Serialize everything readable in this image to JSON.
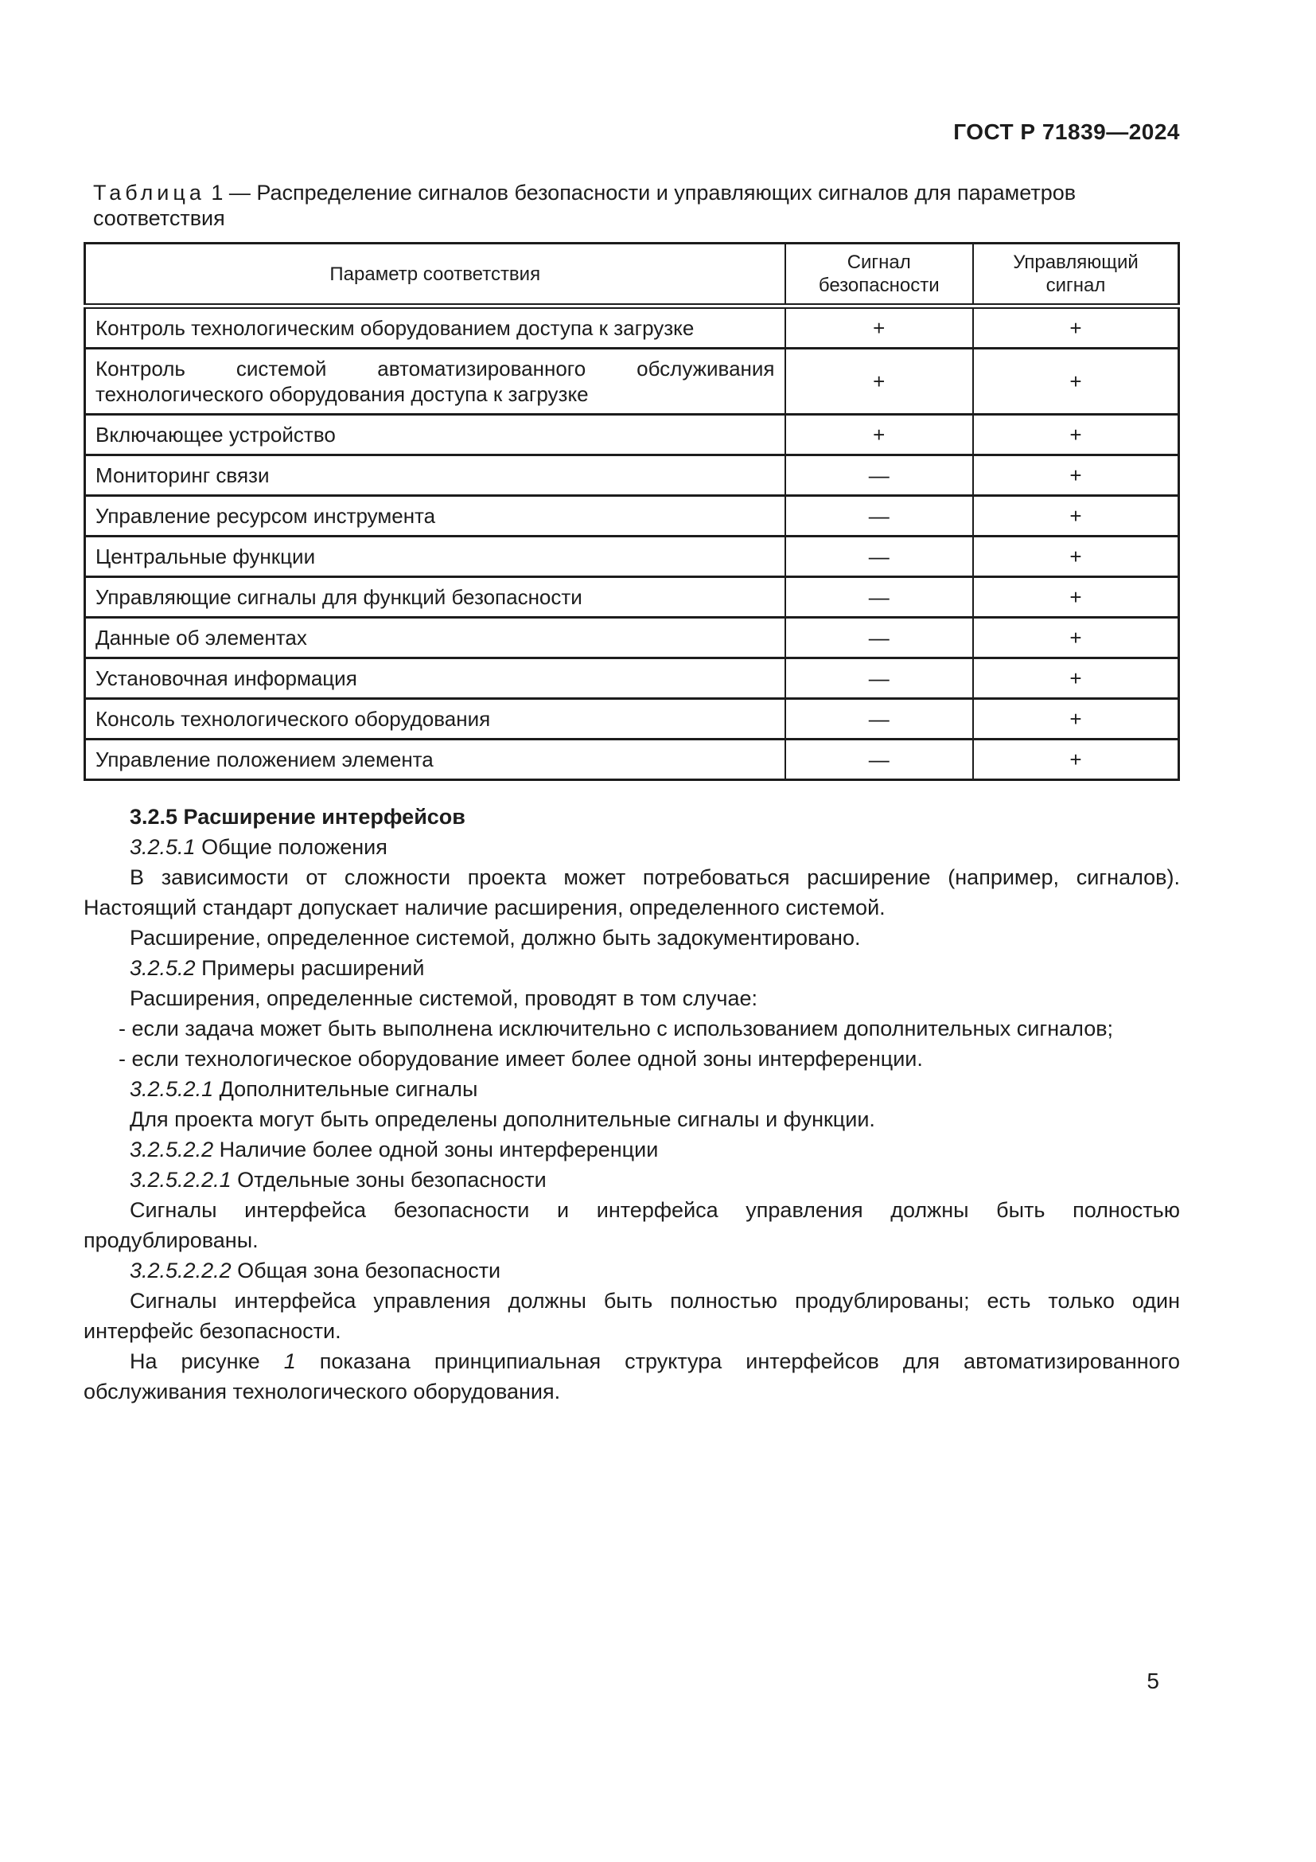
{
  "page": {
    "header": "ГОСТ Р 71839—2024",
    "number": "5"
  },
  "table": {
    "caption_label": "Таблица",
    "caption_rest": " 1 — Распределение сигналов безопасности и управляющих сигналов для параметров соответствия",
    "columns": [
      "Параметр соответствия",
      "Сигнал безопасности",
      "Управляющий сигнал"
    ],
    "rows": [
      {
        "param": "Контроль технологическим оборудованием доступа к загрузке",
        "safety": "+",
        "control": "+"
      },
      {
        "param": "Контроль системой автоматизированного обслуживания технологического оборудования доступа к загрузке",
        "safety": "+",
        "control": "+"
      },
      {
        "param": "Включающее устройство",
        "safety": "+",
        "control": "+"
      },
      {
        "param": "Мониторинг связи",
        "safety": "—",
        "control": "+"
      },
      {
        "param": "Управление ресурсом инструмента",
        "safety": "—",
        "control": "+"
      },
      {
        "param": "Центральные функции",
        "safety": "—",
        "control": "+"
      },
      {
        "param": "Управляющие сигналы для функций безопасности",
        "safety": "—",
        "control": "+"
      },
      {
        "param": "Данные об элементах",
        "safety": "—",
        "control": "+"
      },
      {
        "param": "Установочная информация",
        "safety": "—",
        "control": "+"
      },
      {
        "param": "Консоль технологического оборудования",
        "safety": "—",
        "control": "+"
      },
      {
        "param": "Управление положением элемента",
        "safety": "—",
        "control": "+"
      }
    ]
  },
  "content": {
    "blocks": [
      {
        "type": "clause-heading",
        "text": "3.2.5 Расширение интерфейсов"
      },
      {
        "type": "subclause-heading",
        "num": "3.2.5.1",
        "title": "Общие положения"
      },
      {
        "type": "paragraph",
        "text": "В зависимости от сложности проекта может потребоваться расширение (например, сигналов). Настоящий стандарт допускает наличие расширения, определенного системой."
      },
      {
        "type": "paragraph",
        "text": "Расширение, определенное системой, должно быть задокументировано."
      },
      {
        "type": "subclause-heading",
        "num": "3.2.5.2",
        "title": "Примеры расширений"
      },
      {
        "type": "paragraph",
        "text": "Расширения, определенные системой, проводят в том случае:"
      },
      {
        "type": "list-item",
        "text": "- если задача может быть выполнена исключительно с использованием дополнительных сигналов;"
      },
      {
        "type": "list-item",
        "text": "- если технологическое оборудование имеет более одной зоны интерференции."
      },
      {
        "type": "subclause-heading",
        "num": "3.2.5.2.1",
        "title": "Дополнительные сигналы"
      },
      {
        "type": "paragraph",
        "text": "Для проекта могут быть определены дополнительные сигналы и функции."
      },
      {
        "type": "subclause-heading",
        "num": "3.2.5.2.2",
        "title": "Наличие более одной зоны интерференции"
      },
      {
        "type": "subclause-heading",
        "num": "3.2.5.2.2.1",
        "title": "Отдельные зоны безопасности"
      },
      {
        "type": "paragraph",
        "text": "Сигналы интерфейса безопасности и интерфейса управления должны быть полностью продублированы."
      },
      {
        "type": "subclause-heading",
        "num": "3.2.5.2.2.2",
        "title": "Общая зона безопасности"
      },
      {
        "type": "paragraph",
        "text": "Сигналы интерфейса управления должны быть полностью продублированы; есть только один интерфейс безопасности."
      },
      {
        "type": "paragraph",
        "segments": [
          {
            "text": "На рисунке "
          },
          {
            "text": "1",
            "italic": true
          },
          {
            "text": " показана принципиальная структура интерфейсов для автоматизированного обслуживания технологического оборудования."
          }
        ]
      }
    ]
  }
}
